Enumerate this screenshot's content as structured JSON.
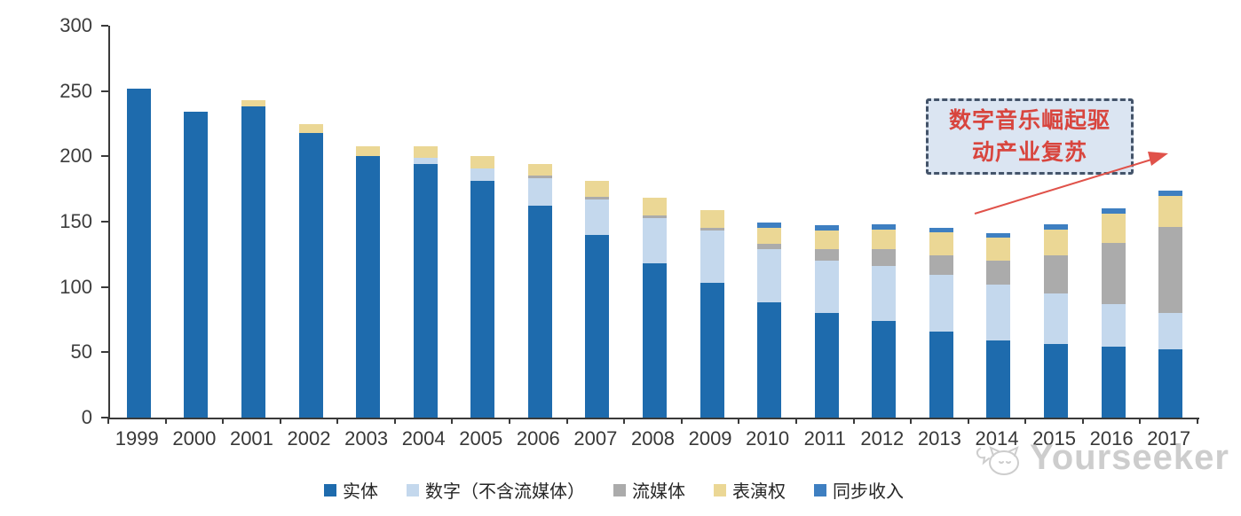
{
  "chart_data": {
    "type": "bar",
    "stacked": true,
    "title": "",
    "categories": [
      "1999",
      "2000",
      "2001",
      "2002",
      "2003",
      "2004",
      "2005",
      "2006",
      "2007",
      "2008",
      "2009",
      "2010",
      "2011",
      "2012",
      "2013",
      "2014",
      "2015",
      "2016",
      "2017"
    ],
    "series": [
      {
        "name": "实体",
        "color": "#1E6BAD",
        "values": [
          252,
          234,
          238,
          218,
          200,
          194,
          181,
          162,
          140,
          118,
          103,
          88,
          80,
          74,
          66,
          59,
          56,
          54,
          52
        ]
      },
      {
        "name": "数字（不含流媒体）",
        "color": "#C4D8ED",
        "values": [
          0,
          0,
          0,
          0,
          0,
          5,
          10,
          21,
          27,
          35,
          40,
          41,
          40,
          42,
          43,
          43,
          39,
          33,
          28
        ]
      },
      {
        "name": "流媒体",
        "color": "#ABABAB",
        "values": [
          0,
          0,
          0,
          0,
          0,
          0,
          0,
          2,
          2,
          2,
          2,
          4,
          9,
          13,
          15,
          18,
          29,
          47,
          66
        ]
      },
      {
        "name": "表演权",
        "color": "#EBD795",
        "values": [
          0,
          0,
          5,
          7,
          8,
          9,
          9,
          9,
          12,
          13,
          14,
          12,
          14,
          15,
          18,
          18,
          20,
          22,
          24
        ]
      },
      {
        "name": "同步收入",
        "color": "#3E7FC1",
        "values": [
          0,
          0,
          0,
          0,
          0,
          0,
          0,
          0,
          0,
          0,
          0,
          4,
          4,
          4,
          3,
          3,
          4,
          4,
          4
        ]
      }
    ],
    "ylim": [
      0,
      300
    ],
    "y_ticks": [
      0,
      50,
      100,
      150,
      200,
      250,
      300
    ],
    "xlabel": "",
    "ylabel": "",
    "grid": false,
    "legend_position": "bottom",
    "axis_color": "#3a3a3a",
    "tick_label_color": "#3d3d3d"
  },
  "annotation": {
    "line1": "数字音乐崛起驱",
    "line2": "动产业复苏",
    "text_color": "#D8453E",
    "border_color": "#44546A",
    "bg_color": "#DBE5F2",
    "arrow_color": "#E0524A"
  },
  "watermark": {
    "text": "Yourseeker",
    "color": "#C9C9C9"
  }
}
